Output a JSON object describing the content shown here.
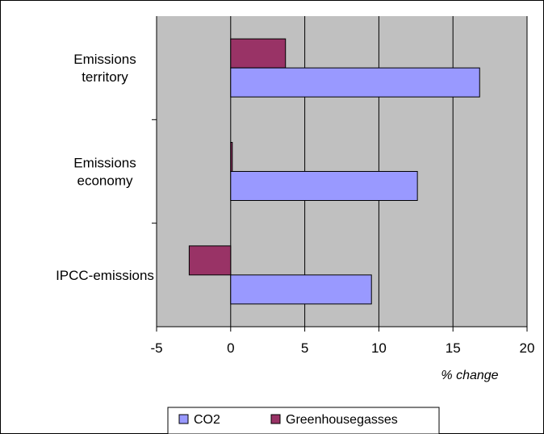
{
  "chart_data": {
    "type": "bar",
    "orientation": "horizontal",
    "categories": [
      "Emissions\nterritory",
      "Emissions\neconomy",
      "IPCC-emissions"
    ],
    "series": [
      {
        "name": "CO2",
        "values": [
          16.8,
          12.6,
          9.5
        ]
      },
      {
        "name": "Greenhousegasses",
        "values": [
          3.7,
          0.1,
          -2.8
        ]
      }
    ],
    "xlabel": "% change",
    "xlim": [
      -5,
      20
    ],
    "xticks": [
      -5,
      0,
      5,
      10,
      15,
      20
    ],
    "grid": true,
    "legend_position": "bottom",
    "colors": {
      "CO2": "#9999ff",
      "Greenhousegasses": "#993366",
      "plot_background": "#c0c0c0",
      "gridline": "#000000"
    }
  }
}
